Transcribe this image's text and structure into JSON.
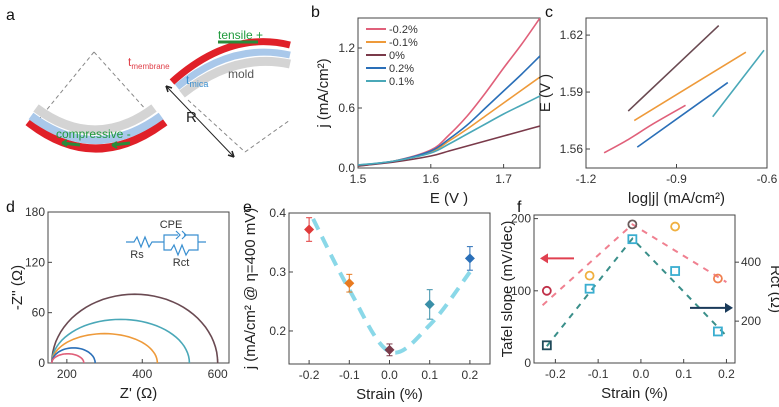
{
  "panel_labels": [
    "a",
    "b",
    "c",
    "d",
    "e",
    "f"
  ],
  "schematic": {
    "labels": {
      "membrane": "t",
      "membrane_sub": "membrane",
      "mica": "t",
      "mica_sub": "mica",
      "mold": "mold",
      "tensile": "tensile +",
      "compressive": "compressive -",
      "radius": "R"
    },
    "colors": {
      "membrane": "#e02028",
      "mica": "#a9c8ea",
      "mold": "#d4d4d4",
      "strain_arrow": "#2a8a3a",
      "text_green": "#1f9a3c",
      "text_red": "#e0404a",
      "text_blue": "#3a8fd0"
    }
  },
  "chart_data": [
    {
      "id": "b",
      "type": "line",
      "xlabel": "E (V )",
      "ylabel": "j (mA/cm²)",
      "xlim": [
        1.5,
        1.75
      ],
      "ylim": [
        0,
        1.5
      ],
      "xticks": [
        1.5,
        1.6,
        1.7
      ],
      "xtick_labels": [
        "1.5",
        "1.6",
        "1.7"
      ],
      "yticks": [
        0.0,
        0.6,
        1.2
      ],
      "ytick_labels": [
        "0.0",
        "0.6",
        "1.2"
      ],
      "legend": "top-left",
      "series": [
        {
          "name": "-0.2%",
          "color": "#e0607a",
          "x": [
            1.5,
            1.55,
            1.6,
            1.625,
            1.65,
            1.675,
            1.7,
            1.725,
            1.75
          ],
          "y": [
            0.02,
            0.07,
            0.18,
            0.33,
            0.52,
            0.75,
            1.0,
            1.24,
            1.5
          ]
        },
        {
          "name": "-0.1%",
          "color": "#ee9a3a",
          "x": [
            1.5,
            1.55,
            1.6,
            1.625,
            1.65,
            1.675,
            1.7,
            1.725,
            1.75
          ],
          "y": [
            0.02,
            0.07,
            0.16,
            0.27,
            0.39,
            0.52,
            0.65,
            0.78,
            0.91
          ]
        },
        {
          "name": "0%",
          "color": "#7a3a4a",
          "x": [
            1.5,
            1.55,
            1.6,
            1.625,
            1.65,
            1.675,
            1.7,
            1.725,
            1.75
          ],
          "y": [
            0.02,
            0.06,
            0.12,
            0.17,
            0.22,
            0.27,
            0.32,
            0.37,
            0.42
          ]
        },
        {
          "name": "0.2%",
          "color": "#2a6fb8",
          "x": [
            1.5,
            1.55,
            1.6,
            1.625,
            1.65,
            1.675,
            1.7,
            1.725,
            1.75
          ],
          "y": [
            0.03,
            0.07,
            0.17,
            0.29,
            0.43,
            0.6,
            0.77,
            0.94,
            1.12
          ]
        },
        {
          "name": "0.1%",
          "color": "#4aa8b8",
          "x": [
            1.5,
            1.55,
            1.6,
            1.625,
            1.65,
            1.675,
            1.7,
            1.725,
            1.75
          ],
          "y": [
            0.03,
            0.07,
            0.15,
            0.24,
            0.34,
            0.44,
            0.54,
            0.63,
            0.72
          ]
        }
      ]
    },
    {
      "id": "c",
      "type": "line",
      "xlabel": "log|j| (mA/cm²)",
      "ylabel": "E (V )",
      "xlim": [
        -1.2,
        -0.6
      ],
      "ylim": [
        1.55,
        1.629
      ],
      "xticks": [
        -1.2,
        -0.9,
        -0.6
      ],
      "xtick_labels": [
        "-1.2",
        "-0.9",
        "-0.6"
      ],
      "yticks": [
        1.56,
        1.59,
        1.62
      ],
      "ytick_labels": [
        "1.56",
        "1.59",
        "1.62"
      ],
      "series": [
        {
          "name": "-0.2%",
          "color": "#e0607a",
          "x": [
            -1.14,
            -1.06,
            -0.98,
            -0.87
          ],
          "y": [
            1.558,
            1.565,
            1.573,
            1.583
          ]
        },
        {
          "name": "-0.1%",
          "color": "#ee9a3a",
          "x": [
            -1.04,
            -0.67
          ],
          "y": [
            1.575,
            1.611
          ]
        },
        {
          "name": "0%",
          "color": "#6a4a52",
          "x": [
            -1.06,
            -0.76
          ],
          "y": [
            1.58,
            1.625
          ]
        },
        {
          "name": "0.2%",
          "color": "#2a6fb8",
          "x": [
            -1.03,
            -0.73
          ],
          "y": [
            1.561,
            1.595
          ]
        },
        {
          "name": "0.1%",
          "color": "#4aa8b8",
          "x": [
            -0.78,
            -0.61
          ],
          "y": [
            1.577,
            1.612
          ]
        }
      ]
    },
    {
      "id": "d",
      "type": "line",
      "xlabel": "Z' (Ω)",
      "ylabel": "-Z'' (Ω)",
      "xlim": [
        150,
        630
      ],
      "ylim": [
        0,
        180
      ],
      "xticks": [
        200,
        400,
        600
      ],
      "xtick_labels": [
        "200",
        "400",
        "600"
      ],
      "yticks": [
        0,
        60,
        120,
        180
      ],
      "ytick_labels": [
        "0",
        "60",
        "120",
        "180"
      ],
      "inset_circuit": {
        "labels": [
          "Rs",
          "CPE",
          "Rct"
        ],
        "color": "#3a8fd0"
      },
      "series": [
        {
          "name": "0%",
          "color": "#6a4a52",
          "z_start": 160,
          "z_end": 600,
          "peak": 82
        },
        {
          "name": "0.1%",
          "color": "#4aa8b8",
          "z_start": 160,
          "z_end": 525,
          "peak": 52
        },
        {
          "name": "-0.1%",
          "color": "#ee9a3a",
          "z_start": 160,
          "z_end": 440,
          "peak": 35
        },
        {
          "name": "0.2%",
          "color": "#2a6fb8",
          "z_start": 160,
          "z_end": 275,
          "peak": 18
        },
        {
          "name": "-0.2%",
          "color": "#e0607a",
          "z_start": 160,
          "z_end": 245,
          "peak": 11
        }
      ]
    },
    {
      "id": "e",
      "type": "scatter",
      "xlabel": "Strain (%)",
      "ylabel": "j (mA/cm² @ η=400 mV)",
      "xlim": [
        -0.25,
        0.25
      ],
      "ylim": [
        0.144,
        0.4
      ],
      "xticks": [
        -0.2,
        -0.1,
        0.0,
        0.1,
        0.2
      ],
      "xtick_labels": [
        "-0.2",
        "-0.1",
        "0.0",
        "0.1",
        "0.2"
      ],
      "yticks": [
        0.2,
        0.3,
        0.4
      ],
      "ytick_labels": [
        "0.2",
        "0.3",
        "0.4"
      ],
      "points": [
        {
          "x": -0.2,
          "y": 0.372,
          "err": 0.02,
          "color": "#e03a3a"
        },
        {
          "x": -0.1,
          "y": 0.281,
          "err": 0.015,
          "color": "#e87a20"
        },
        {
          "x": 0.0,
          "y": 0.168,
          "err": 0.01,
          "color": "#7a3a4a"
        },
        {
          "x": 0.1,
          "y": 0.245,
          "err": 0.025,
          "color": "#3a8fa8"
        },
        {
          "x": 0.2,
          "y": 0.323,
          "err": 0.02,
          "color": "#2a6fb8"
        }
      ],
      "trend": {
        "color": "#8ad8e8",
        "x": [
          -0.19,
          -0.1,
          0.0,
          0.1,
          0.2
        ],
        "y": [
          0.39,
          0.27,
          0.165,
          0.21,
          0.3
        ]
      }
    },
    {
      "id": "f",
      "type": "scatter",
      "xlabel": "Strain (%)",
      "ylabel": "Tafel slope (mV/dec)",
      "ylabel_right": "Rct (Ω)",
      "xlim": [
        -0.25,
        0.22
      ],
      "ylim": [
        0,
        205
      ],
      "ylim_right": [
        58,
        560
      ],
      "xticks": [
        -0.2,
        -0.1,
        0.0,
        0.1,
        0.2
      ],
      "xtick_labels": [
        "-0.2",
        "-0.1",
        "0.0",
        "0.1",
        "0.2"
      ],
      "yticks": [
        0,
        100,
        200
      ],
      "ytick_labels": [
        "0",
        "100",
        "200"
      ],
      "yticks_right": [
        200,
        400
      ],
      "ytick_labels_right": [
        "200",
        "400"
      ],
      "tafel": [
        {
          "x": -0.22,
          "y": 100,
          "color": "#c03048"
        },
        {
          "x": -0.12,
          "y": 121,
          "color": "#f0b040"
        },
        {
          "x": -0.02,
          "y": 192,
          "color": "#6a5a5a"
        },
        {
          "x": 0.08,
          "y": 189,
          "color": "#f0b040"
        },
        {
          "x": 0.18,
          "y": 117,
          "color": "#f08050"
        }
      ],
      "rct": [
        {
          "x": -0.22,
          "y": 118,
          "color": "#204a5a"
        },
        {
          "x": -0.12,
          "y": 310,
          "color": "#3aaed0"
        },
        {
          "x": -0.02,
          "y": 478,
          "color": "#3aaed0"
        },
        {
          "x": 0.08,
          "y": 370,
          "color": "#3aaed0"
        },
        {
          "x": 0.18,
          "y": 165,
          "color": "#3aaed0"
        }
      ],
      "tafel_trend": {
        "color": "#f08090",
        "x": [
          -0.23,
          -0.02,
          0.2
        ],
        "y": [
          80,
          192,
          112
        ]
      },
      "rct_trend": {
        "color": "#3a8f8a",
        "x": [
          -0.22,
          -0.02,
          0.2
        ],
        "y": [
          115,
          480,
          150
        ]
      },
      "arrows": {
        "left_color": "#e04050",
        "right_color": "#1a3a5a"
      }
    }
  ]
}
